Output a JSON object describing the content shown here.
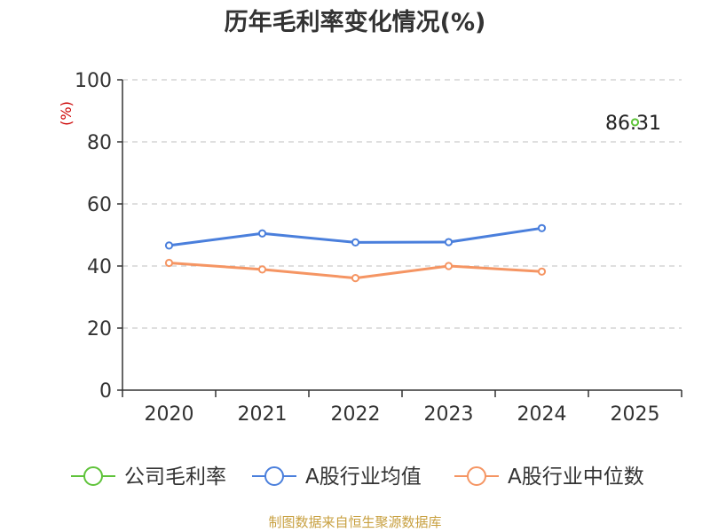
{
  "chart_data": {
    "type": "line",
    "title": "历年毛利率变化情况(%)",
    "ylabel": "(%)",
    "xlabel": "",
    "categories": [
      "2020",
      "2021",
      "2022",
      "2023",
      "2024",
      "2025"
    ],
    "ylim": [
      0,
      100
    ],
    "yticks": [
      0,
      20,
      40,
      60,
      80,
      100
    ],
    "grid": true,
    "legend_position": "bottom",
    "series": [
      {
        "name": "公司毛利率",
        "color": "#5fc33a",
        "values": [
          null,
          null,
          null,
          null,
          null,
          86.31
        ],
        "labels": [
          "",
          "",
          "",
          "",
          "",
          "86.31"
        ]
      },
      {
        "name": "A股行业均值",
        "color": "#4a7fdc",
        "values": [
          46.6,
          50.5,
          47.6,
          47.7,
          52.2,
          null
        ]
      },
      {
        "name": "A股行业中位数",
        "color": "#f59563",
        "values": [
          41.0,
          38.9,
          36.1,
          40.0,
          38.2,
          null
        ]
      }
    ],
    "source": "制图数据来自恒生聚源数据库"
  }
}
